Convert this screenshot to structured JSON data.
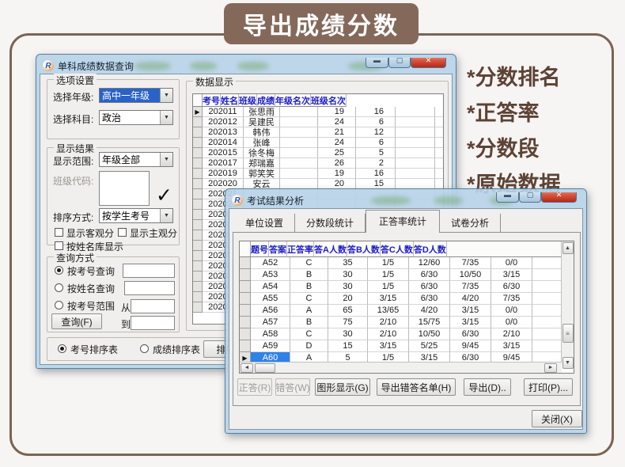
{
  "banner": {
    "title": "导出成绩分数"
  },
  "highlights": [
    "*分数排名",
    "*正答率",
    "*分数段",
    "*原始数据"
  ],
  "icons": {
    "app_logo": "R",
    "minimize": "▬",
    "maximize": "▢",
    "close": "✕",
    "dropdown": "▼",
    "check": "✓",
    "row_marker": "▶",
    "scroll_up": "▲",
    "scroll_down": "▼",
    "scroll_left": "◄",
    "scroll_right": "►",
    "grip": "≡"
  },
  "colors": {
    "accent_brown": "#84695b",
    "header_blue": "#1c1cc8",
    "selection_blue": "#2f82e8"
  },
  "window1": {
    "title": "单科成绩数据查询",
    "options_group": {
      "label": "选项设置",
      "grade_label": "选择年级:",
      "grade_value": "高中一年级",
      "subject_label": "选择科目:",
      "subject_value": "政治"
    },
    "display_group": {
      "label": "显示结果",
      "range_label": "显示范围:",
      "range_value": "年级全部",
      "class_code_label": "班级代码:",
      "sort_label": "排序方式:",
      "sort_value": "按学生考号",
      "checkbox_objective": "显示客观分",
      "checkbox_subjective": "显示主观分",
      "checkbox_name_lib": "按姓名库显示"
    },
    "query_group": {
      "label": "查询方式",
      "radio_by_number": "按考号查询",
      "radio_by_name": "按姓名查询",
      "radio_by_range": "按考号范围",
      "from_label": "从",
      "to_label": "到",
      "query_button": "查询(F)"
    },
    "footer": {
      "radio_number_sort": "考号排序表",
      "radio_score_sort": "成绩排序表",
      "print_button": "排序打印(I)"
    },
    "data_group": {
      "label": "数据显示",
      "headers": [
        "考号",
        "姓名",
        "班级",
        "成绩",
        "年级名次",
        "班级名次"
      ],
      "selected_index": 0,
      "rows": [
        {
          "cells": [
            "202011",
            "张思雨",
            "",
            "19",
            "16",
            ""
          ]
        },
        {
          "cells": [
            "202012",
            "吴建民",
            "",
            "24",
            "6",
            ""
          ]
        },
        {
          "cells": [
            "202013",
            "韩伟",
            "",
            "21",
            "12",
            ""
          ]
        },
        {
          "cells": [
            "202014",
            "张峰",
            "",
            "24",
            "6",
            ""
          ]
        },
        {
          "cells": [
            "202015",
            "徐冬梅",
            "",
            "25",
            "5",
            ""
          ]
        },
        {
          "cells": [
            "202017",
            "郑瑞嘉",
            "",
            "26",
            "2",
            ""
          ]
        },
        {
          "cells": [
            "202019",
            "郭笑笑",
            "",
            "19",
            "16",
            ""
          ]
        },
        {
          "cells": [
            "202020",
            "安云",
            "",
            "20",
            "15",
            ""
          ]
        },
        {
          "cells": [
            "202021",
            "",
            "",
            "",
            "",
            ""
          ]
        },
        {
          "cells": [
            "202023",
            "",
            "",
            "",
            "",
            ""
          ]
        },
        {
          "cells": [
            "202024",
            "",
            "",
            "",
            "",
            ""
          ]
        },
        {
          "cells": [
            "202026",
            "",
            "",
            "",
            "",
            ""
          ]
        },
        {
          "cells": [
            "202027",
            "",
            "",
            "",
            "",
            ""
          ]
        },
        {
          "cells": [
            "202029",
            "",
            "",
            "",
            "",
            ""
          ]
        },
        {
          "cells": [
            "202030",
            "",
            "",
            "",
            "",
            ""
          ]
        },
        {
          "cells": [
            "202031",
            "",
            "",
            "",
            "",
            ""
          ]
        },
        {
          "cells": [
            "202032",
            "",
            "",
            "",
            "",
            ""
          ]
        },
        {
          "cells": [
            "202034",
            "",
            "",
            "",
            "",
            ""
          ]
        },
        {
          "cells": [
            "202036",
            "",
            "",
            "",
            "",
            ""
          ]
        },
        {
          "cells": [
            "202037",
            "",
            "",
            "",
            "",
            ""
          ]
        }
      ]
    }
  },
  "window2": {
    "title": "考试结果分析",
    "tabs": [
      {
        "label": "单位设置",
        "active": false
      },
      {
        "label": "分数段统计",
        "active": false
      },
      {
        "label": "正答率统计",
        "active": true
      },
      {
        "label": "试卷分析",
        "active": false
      }
    ],
    "table": {
      "headers": [
        "题号",
        "答案",
        "正答率",
        "答A人数",
        "答B人数",
        "答C人数",
        "答D人数"
      ],
      "selected_index": 8,
      "rows": [
        {
          "cells": [
            "A52",
            "C",
            "35",
            "1/5",
            "12/60",
            "7/35",
            "0/0"
          ]
        },
        {
          "cells": [
            "A53",
            "B",
            "30",
            "1/5",
            "6/30",
            "10/50",
            "3/15"
          ]
        },
        {
          "cells": [
            "A54",
            "B",
            "30",
            "1/5",
            "6/30",
            "7/35",
            "6/30"
          ]
        },
        {
          "cells": [
            "A55",
            "C",
            "20",
            "3/15",
            "6/30",
            "4/20",
            "7/35"
          ]
        },
        {
          "cells": [
            "A56",
            "A",
            "65",
            "13/65",
            "4/20",
            "3/15",
            "0/0"
          ]
        },
        {
          "cells": [
            "A57",
            "B",
            "75",
            "2/10",
            "15/75",
            "3/15",
            "0/0"
          ]
        },
        {
          "cells": [
            "A58",
            "C",
            "30",
            "2/10",
            "10/50",
            "6/30",
            "2/10"
          ]
        },
        {
          "cells": [
            "A59",
            "D",
            "15",
            "3/15",
            "5/25",
            "9/45",
            "3/15"
          ]
        },
        {
          "cells": [
            "A60",
            "A",
            "5",
            "1/5",
            "3/15",
            "6/30",
            "9/45"
          ]
        }
      ]
    },
    "buttons": [
      {
        "label": "正答(R)",
        "disabled": true
      },
      {
        "label": "错答(W)",
        "disabled": true
      },
      {
        "label": "图形显示(G)",
        "disabled": false
      },
      {
        "label": "导出错答名单(H)",
        "disabled": false
      },
      {
        "label": "导出(D)..",
        "disabled": false
      },
      {
        "label": "打印(P)...",
        "disabled": false
      }
    ],
    "close_button": "关闭(X)"
  }
}
